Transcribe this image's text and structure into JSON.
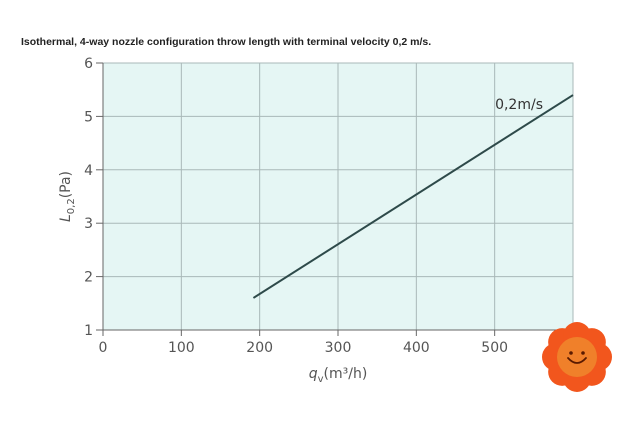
{
  "title": "Isothermal, 4-way nozzle configuration throw length with terminal velocity 0,2 m/s.",
  "colors": {
    "plot_background": "#e5f6f4",
    "grid": "#a9b8b8",
    "axis": "#666666",
    "line": "#2e4a4a",
    "mascot_petal": "#f2561d",
    "mascot_center": "#f0802a"
  },
  "mascot": {
    "icon": "smiling-flower-icon"
  },
  "chart_data": {
    "type": "line",
    "title": "Isothermal, 4-way nozzle configuration throw length with terminal velocity 0,2 m/s.",
    "xlabel": {
      "base": "q",
      "sub": "v",
      "rest": "(m³/h)"
    },
    "ylabel": {
      "base": "L",
      "sub": "0,2",
      "rest": "(Pa)"
    },
    "xlim": [
      0,
      600
    ],
    "ylim": [
      1,
      6
    ],
    "x_ticks": [
      0,
      100,
      200,
      300,
      400,
      500
    ],
    "x_tick_labels": [
      "0",
      "100",
      "200",
      "300",
      "400",
      "500"
    ],
    "y_ticks": [
      1,
      2,
      3,
      4,
      5,
      6
    ],
    "y_tick_labels": [
      "1",
      "2",
      "3",
      "4",
      "5",
      "6"
    ],
    "grid": true,
    "series": [
      {
        "name": "0,2m/s",
        "x": [
          192,
          600
        ],
        "y": [
          1.6,
          5.4
        ]
      }
    ]
  }
}
